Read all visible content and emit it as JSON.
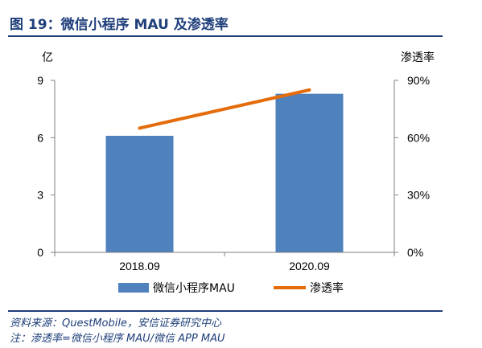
{
  "figure": {
    "title": "图 19：微信小程序 MAU 及渗透率",
    "source_note": "资料来源：QuestMobile，安信证券研究中心",
    "note": "注：渗透率=微信小程序 MAU/微信 APP MAU"
  },
  "colors": {
    "bar": "#4f81bd",
    "line": "#e46c0a",
    "title": "#1f3f7a"
  },
  "chart_data": {
    "type": "bar",
    "categories": [
      "2018.09",
      "2020.09"
    ],
    "series": [
      {
        "name": "微信小程序MAU",
        "type": "bar",
        "axis": "left",
        "values": [
          6.1,
          8.3
        ]
      },
      {
        "name": "渗透率",
        "type": "line",
        "axis": "right",
        "values": [
          0.65,
          0.85
        ]
      }
    ],
    "y_left": {
      "label": "亿",
      "range": [
        0,
        9
      ],
      "ticks": [
        "0",
        "3",
        "6",
        "9"
      ]
    },
    "y_right": {
      "label": "渗透率",
      "range": [
        0,
        0.9
      ],
      "ticks": [
        "0%",
        "30%",
        "60%",
        "90%"
      ]
    },
    "grid": false,
    "legend_position": "bottom"
  }
}
